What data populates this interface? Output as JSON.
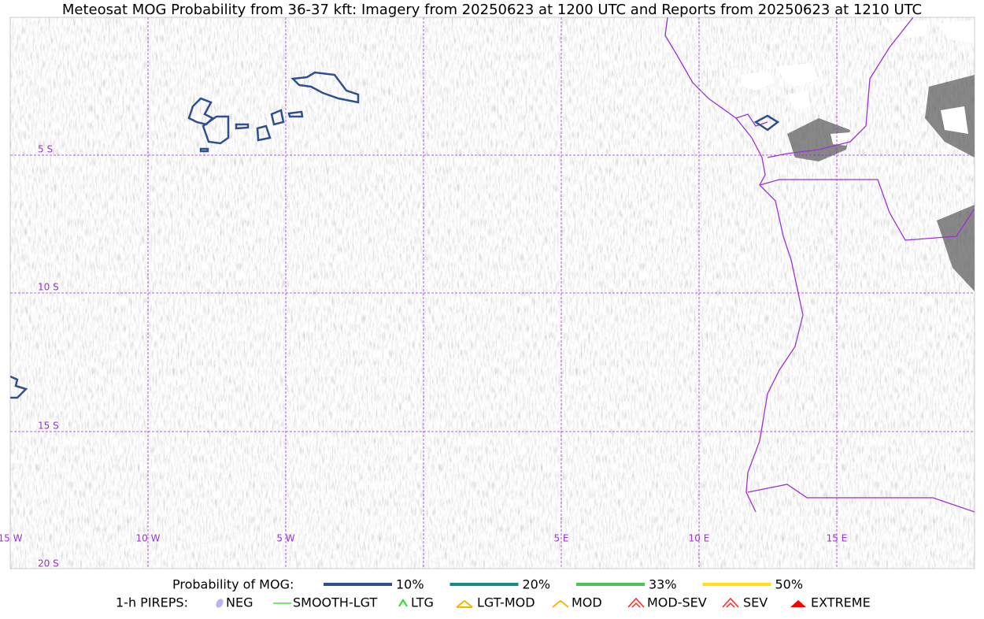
{
  "title": "Meteosat MOG Probability from 36-37 kft: Imagery from 20250623 at 1200 UTC and Reports from 20250623 at 1210 UTC",
  "map": {
    "lat_labels": [
      "5 S",
      "10 S",
      "15 S",
      "20 S"
    ],
    "lon_labels": [
      "15 W",
      "10 W",
      "5 W",
      "5 E",
      "10 E",
      "15 E"
    ]
  },
  "legend": {
    "probability": {
      "label": "Probability of MOG:",
      "items": [
        {
          "label": "10%",
          "color": "#2f4f8f"
        },
        {
          "label": "20%",
          "color": "#168b87"
        },
        {
          "label": "33%",
          "color": "#4cc35a"
        },
        {
          "label": "50%",
          "color": "#ffe012"
        }
      ]
    },
    "pireps": {
      "label": "1-h PIREPS:",
      "items": [
        {
          "label": "NEG",
          "color": "#b9b4f4"
        },
        {
          "label": "SMOOTH-LGT",
          "color": "#3ee63e"
        },
        {
          "label": "LTG",
          "color": "#1ee01e"
        },
        {
          "label": "LGT-MOD",
          "color": "#f5b800"
        },
        {
          "label": "MOD",
          "color": "#f5b800"
        },
        {
          "label": "MOD-SEV",
          "color": "#f22"
        },
        {
          "label": "SEV",
          "color": "#f22"
        },
        {
          "label": "EXTREME",
          "color": "#f00"
        }
      ]
    }
  }
}
